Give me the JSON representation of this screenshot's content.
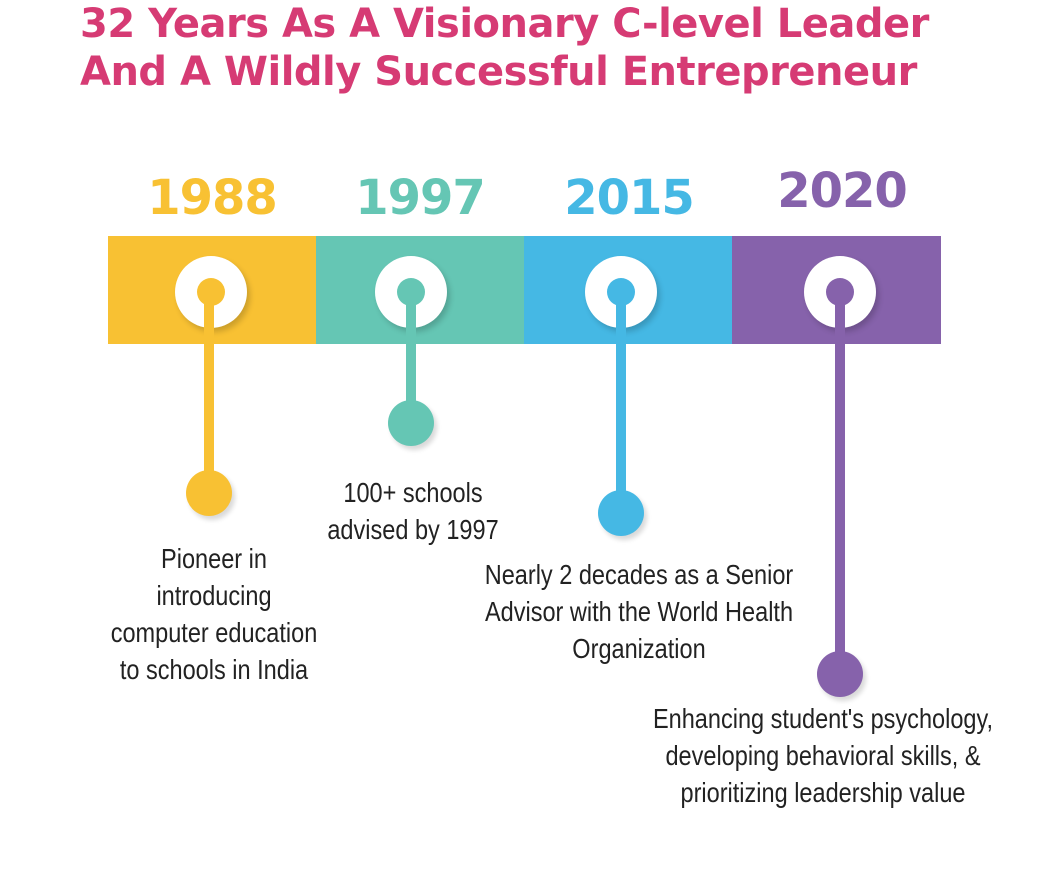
{
  "title": {
    "line1": "32 Years As A Visionary C-level Leader",
    "line2": "And A Wildly Successful Entrepreneur"
  },
  "colors": {
    "title": "#d63b74",
    "yellow": "#f8c133",
    "teal": "#65c6b4",
    "blue": "#45b8e4",
    "purple": "#8662ab"
  },
  "milestones": [
    {
      "year": "1988",
      "color": "#f8c133",
      "caption": [
        "Pioneer in",
        "introducing",
        "computer education",
        "to schools in India"
      ]
    },
    {
      "year": "1997",
      "color": "#65c6b4",
      "caption": [
        "100+ schools",
        "advised by 1997"
      ]
    },
    {
      "year": "2015",
      "color": "#45b8e4",
      "caption": [
        "Nearly 2 decades as a Senior",
        "Advisor with the World Health",
        "Organization"
      ]
    },
    {
      "year": "2020",
      "color": "#8662ab",
      "caption": [
        "Enhancing student's psychology,",
        "developing behavioral skills, &",
        "prioritizing leadership value"
      ]
    }
  ]
}
